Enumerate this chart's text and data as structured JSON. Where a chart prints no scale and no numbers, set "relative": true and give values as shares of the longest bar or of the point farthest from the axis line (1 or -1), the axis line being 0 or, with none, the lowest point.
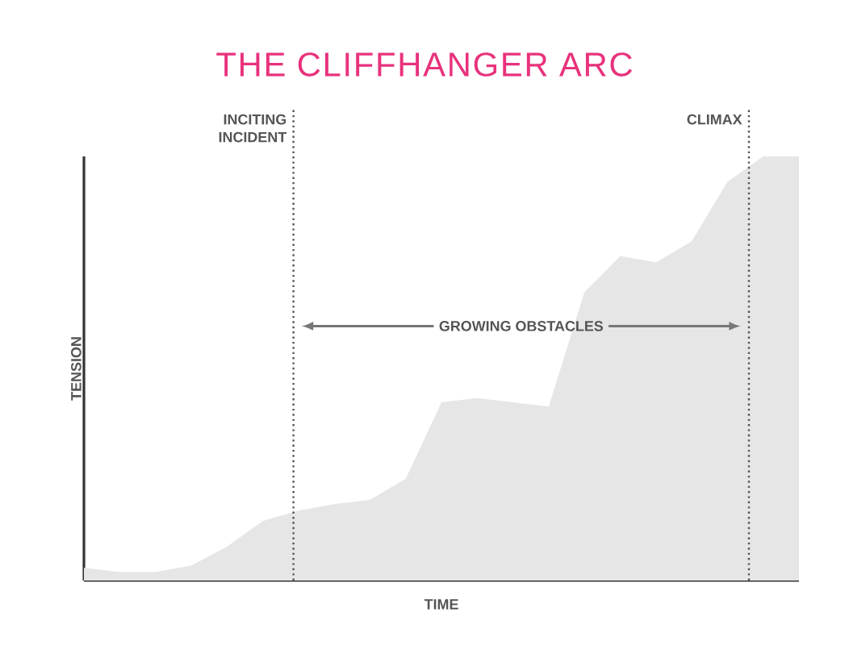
{
  "chart_data": {
    "type": "area",
    "title": "THE CLIFFHANGER ARC",
    "xlabel": "TIME",
    "ylabel": "TENSION",
    "relative": true,
    "tick_labels": false,
    "categories": [
      null,
      null,
      null,
      null,
      null,
      null,
      null,
      null,
      null,
      null,
      null,
      null,
      null,
      null,
      null,
      null,
      null,
      null,
      null,
      null,
      null
    ],
    "annotations": [
      "INCITING INCIDENT",
      "GROWING OBSTACLES",
      "CLIMAX"
    ],
    "series": [
      {
        "color": "#e6e6e6",
        "values": [
          0.03,
          0.02,
          0.02,
          0.035,
          0.08,
          0.14,
          0.165,
          0.18,
          0.19,
          0.24,
          0.42,
          0.43,
          0.42,
          0.41,
          0.68,
          0.765,
          0.75,
          0.8,
          0.94,
          1.0,
          1.0
        ]
      }
    ]
  }
}
